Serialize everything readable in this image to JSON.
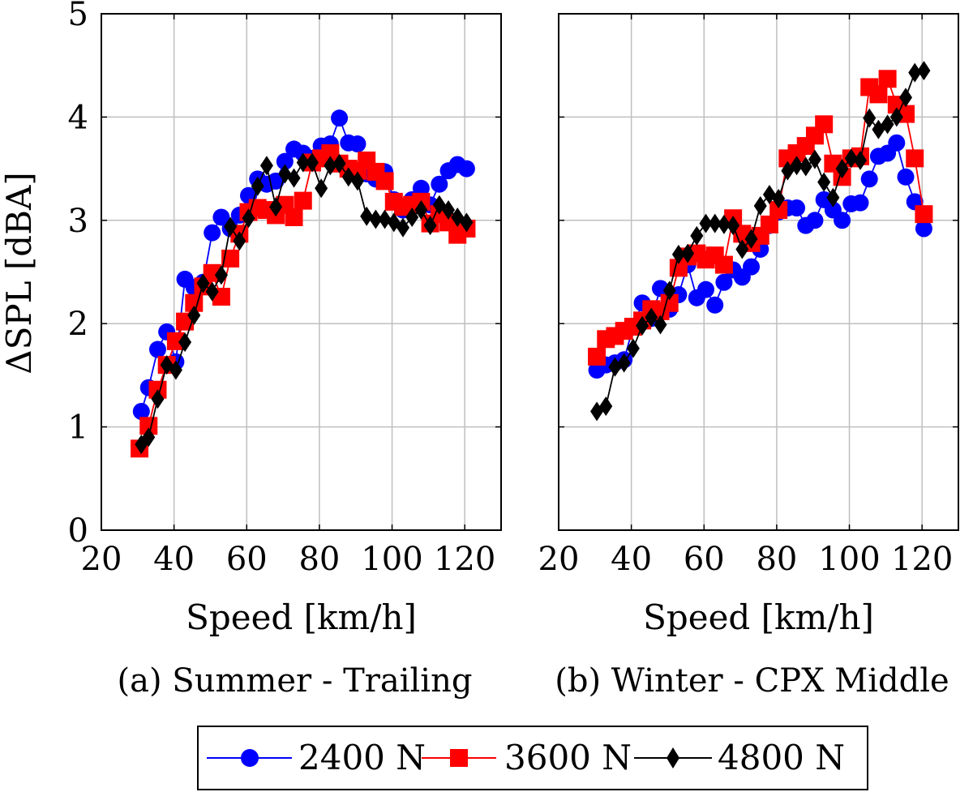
{
  "y_label": "ΔSPL [dBA]",
  "legend": [
    {
      "label": "2400 N",
      "color": "#0000ff",
      "marker": "circle-icon"
    },
    {
      "label": "3600 N",
      "color": "#ff0000",
      "marker": "square-icon"
    },
    {
      "label": "4800 N",
      "color": "#000000",
      "marker": "diamond-icon"
    }
  ],
  "chart_data": [
    {
      "type": "line",
      "caption": "(a) Summer - Trailing",
      "xlabel": "Speed [km/h]",
      "ylabel": "ΔSPL [dBA]",
      "xlim": [
        20,
        130
      ],
      "ylim": [
        0,
        5
      ],
      "xticks": [
        20,
        40,
        60,
        80,
        100,
        120
      ],
      "yticks": [
        0,
        1,
        2,
        3,
        4,
        5
      ],
      "grid": true,
      "series": [
        {
          "name": "2400 N",
          "color": "#0000ff",
          "marker": "circle",
          "points": [
            [
              31,
              1.15
            ],
            [
              33,
              1.38
            ],
            [
              35.5,
              1.75
            ],
            [
              38,
              1.92
            ],
            [
              40.5,
              1.63
            ],
            [
              43,
              2.43
            ],
            [
              45.5,
              2.35
            ],
            [
              48,
              2.4
            ],
            [
              50.5,
              2.88
            ],
            [
              53,
              3.03
            ],
            [
              55.5,
              2.92
            ],
            [
              58,
              3.05
            ],
            [
              60.5,
              3.24
            ],
            [
              63,
              3.4
            ],
            [
              65.5,
              3.35
            ],
            [
              68,
              3.38
            ],
            [
              70.5,
              3.57
            ],
            [
              73,
              3.69
            ],
            [
              75.5,
              3.65
            ],
            [
              78,
              3.6
            ],
            [
              80.5,
              3.72
            ],
            [
              83,
              3.74
            ],
            [
              85.5,
              3.99
            ],
            [
              88,
              3.75
            ],
            [
              90.5,
              3.74
            ],
            [
              93,
              3.45
            ],
            [
              95.5,
              3.4
            ],
            [
              98,
              3.47
            ],
            [
              100.5,
              3.2
            ],
            [
              103,
              3.1
            ],
            [
              105.5,
              3.2
            ],
            [
              108,
              3.31
            ],
            [
              110.5,
              3.15
            ],
            [
              113,
              3.35
            ],
            [
              115.5,
              3.48
            ],
            [
              118,
              3.54
            ],
            [
              120.5,
              3.5
            ]
          ]
        },
        {
          "name": "3600 N",
          "color": "#ff0000",
          "marker": "square",
          "points": [
            [
              30.5,
              0.79
            ],
            [
              33,
              1.01
            ],
            [
              35.5,
              1.36
            ],
            [
              38,
              1.6
            ],
            [
              40.5,
              1.83
            ],
            [
              43,
              2.02
            ],
            [
              45.5,
              2.2
            ],
            [
              48,
              2.36
            ],
            [
              50.5,
              2.49
            ],
            [
              53,
              2.26
            ],
            [
              55.5,
              2.63
            ],
            [
              58,
              2.87
            ],
            [
              60.5,
              3.08
            ],
            [
              63,
              3.12
            ],
            [
              65.5,
              3.1
            ],
            [
              68,
              3.05
            ],
            [
              70.5,
              3.15
            ],
            [
              73,
              3.03
            ],
            [
              75.5,
              3.19
            ],
            [
              78,
              3.56
            ],
            [
              80.5,
              3.6
            ],
            [
              83,
              3.65
            ],
            [
              85.5,
              3.55
            ],
            [
              88,
              3.5
            ],
            [
              90.5,
              3.48
            ],
            [
              93,
              3.58
            ],
            [
              95.5,
              3.47
            ],
            [
              98,
              3.38
            ],
            [
              100.5,
              3.18
            ],
            [
              103,
              3.13
            ],
            [
              105.5,
              3.15
            ],
            [
              108,
              3.18
            ],
            [
              110.5,
              2.97
            ],
            [
              113,
              3.06
            ],
            [
              115.5,
              2.98
            ],
            [
              118,
              2.86
            ],
            [
              120.5,
              2.92
            ]
          ]
        },
        {
          "name": "4800 N",
          "color": "#000000",
          "marker": "diamond",
          "points": [
            [
              31,
              0.83
            ],
            [
              33,
              0.9
            ],
            [
              35.5,
              1.27
            ],
            [
              38,
              1.6
            ],
            [
              40.5,
              1.55
            ],
            [
              43,
              1.82
            ],
            [
              45.5,
              2.08
            ],
            [
              48,
              2.39
            ],
            [
              50.5,
              2.31
            ],
            [
              53,
              2.47
            ],
            [
              55.5,
              2.94
            ],
            [
              58,
              2.8
            ],
            [
              60.5,
              3.02
            ],
            [
              63,
              3.33
            ],
            [
              65.5,
              3.53
            ],
            [
              68,
              3.13
            ],
            [
              70.5,
              3.45
            ],
            [
              73,
              3.41
            ],
            [
              75.5,
              3.56
            ],
            [
              78,
              3.56
            ],
            [
              80.5,
              3.31
            ],
            [
              83,
              3.53
            ],
            [
              85.5,
              3.55
            ],
            [
              88,
              3.42
            ],
            [
              90.5,
              3.38
            ],
            [
              93,
              3.04
            ],
            [
              95.5,
              3.01
            ],
            [
              98,
              3.01
            ],
            [
              100.5,
              2.98
            ],
            [
              103,
              2.93
            ],
            [
              105.5,
              3.03
            ],
            [
              108,
              3.1
            ],
            [
              110.5,
              2.95
            ],
            [
              113,
              3.15
            ],
            [
              115.5,
              3.1
            ],
            [
              118,
              3.03
            ],
            [
              120.5,
              2.98
            ]
          ]
        }
      ]
    },
    {
      "type": "line",
      "caption": "(b) Winter - CPX Middle",
      "xlabel": "Speed [km/h]",
      "ylabel": "",
      "xlim": [
        20,
        130
      ],
      "ylim": [
        0,
        5
      ],
      "xticks": [
        20,
        40,
        60,
        80,
        100,
        120
      ],
      "yticks": [
        0,
        1,
        2,
        3,
        4,
        5
      ],
      "grid": true,
      "series": [
        {
          "name": "2400 N",
          "color": "#0000ff",
          "marker": "circle",
          "points": [
            [
              30.5,
              1.55
            ],
            [
              33,
              1.6
            ],
            [
              35.5,
              1.62
            ],
            [
              38,
              1.65
            ],
            [
              40.5,
              1.97
            ],
            [
              43,
              2.2
            ],
            [
              45.5,
              2.05
            ],
            [
              48,
              2.34
            ],
            [
              50.5,
              2.14
            ],
            [
              53,
              2.28
            ],
            [
              55.5,
              2.57
            ],
            [
              58,
              2.25
            ],
            [
              60.5,
              2.33
            ],
            [
              63,
              2.18
            ],
            [
              65.5,
              2.4
            ],
            [
              68,
              2.52
            ],
            [
              70.5,
              2.45
            ],
            [
              73,
              2.55
            ],
            [
              75.5,
              2.72
            ],
            [
              78,
              2.95
            ],
            [
              80.5,
              3.08
            ],
            [
              83,
              3.12
            ],
            [
              85.5,
              3.12
            ],
            [
              88,
              2.95
            ],
            [
              90.5,
              3.0
            ],
            [
              93,
              3.2
            ],
            [
              95.5,
              3.1
            ],
            [
              98,
              3.0
            ],
            [
              100.5,
              3.16
            ],
            [
              103,
              3.17
            ],
            [
              105.5,
              3.4
            ],
            [
              108,
              3.62
            ],
            [
              110.5,
              3.65
            ],
            [
              113,
              3.75
            ],
            [
              115.5,
              3.42
            ],
            [
              118,
              3.18
            ],
            [
              120.5,
              2.92
            ]
          ]
        },
        {
          "name": "3600 N",
          "color": "#ff0000",
          "marker": "square",
          "points": [
            [
              30.5,
              1.68
            ],
            [
              33,
              1.85
            ],
            [
              35.5,
              1.88
            ],
            [
              38,
              1.93
            ],
            [
              40.5,
              1.97
            ],
            [
              43,
              2.03
            ],
            [
              45.5,
              2.14
            ],
            [
              48,
              2.12
            ],
            [
              50.5,
              2.2
            ],
            [
              53,
              2.54
            ],
            [
              55.5,
              2.65
            ],
            [
              58,
              2.68
            ],
            [
              60.5,
              2.62
            ],
            [
              63,
              2.66
            ],
            [
              65.5,
              2.57
            ],
            [
              68,
              3.02
            ],
            [
              70.5,
              2.87
            ],
            [
              73,
              2.78
            ],
            [
              75.5,
              2.85
            ],
            [
              78,
              2.96
            ],
            [
              80.5,
              3.1
            ],
            [
              83,
              3.6
            ],
            [
              85.5,
              3.65
            ],
            [
              88,
              3.72
            ],
            [
              90.5,
              3.82
            ],
            [
              93,
              3.93
            ],
            [
              95.5,
              3.55
            ],
            [
              98,
              3.42
            ],
            [
              100.5,
              3.6
            ],
            [
              103,
              3.62
            ],
            [
              105.5,
              4.29
            ],
            [
              108,
              4.22
            ],
            [
              110.5,
              4.37
            ],
            [
              113,
              4.12
            ],
            [
              115.5,
              4.03
            ],
            [
              118,
              3.6
            ],
            [
              120.5,
              3.06
            ]
          ]
        },
        {
          "name": "4800 N",
          "color": "#000000",
          "marker": "diamond",
          "points": [
            [
              30.5,
              1.15
            ],
            [
              33,
              1.2
            ],
            [
              35.5,
              1.58
            ],
            [
              38,
              1.62
            ],
            [
              40.5,
              1.76
            ],
            [
              43,
              1.98
            ],
            [
              45.5,
              2.06
            ],
            [
              48,
              1.99
            ],
            [
              50.5,
              2.32
            ],
            [
              53,
              2.67
            ],
            [
              55.5,
              2.68
            ],
            [
              58,
              2.85
            ],
            [
              60.5,
              2.97
            ],
            [
              63,
              2.97
            ],
            [
              65.5,
              2.96
            ],
            [
              68,
              2.95
            ],
            [
              70.5,
              2.72
            ],
            [
              73,
              2.82
            ],
            [
              75.5,
              3.14
            ],
            [
              78,
              3.25
            ],
            [
              80.5,
              3.21
            ],
            [
              83,
              3.48
            ],
            [
              85.5,
              3.53
            ],
            [
              88,
              3.52
            ],
            [
              90.5,
              3.59
            ],
            [
              93,
              3.37
            ],
            [
              95.5,
              3.22
            ],
            [
              98,
              3.5
            ],
            [
              100.5,
              3.6
            ],
            [
              103,
              3.58
            ],
            [
              105.5,
              3.99
            ],
            [
              108,
              3.88
            ],
            [
              110.5,
              3.93
            ],
            [
              113,
              4.0
            ],
            [
              115.5,
              4.19
            ],
            [
              118,
              4.43
            ],
            [
              120.5,
              4.45
            ]
          ]
        }
      ]
    }
  ]
}
